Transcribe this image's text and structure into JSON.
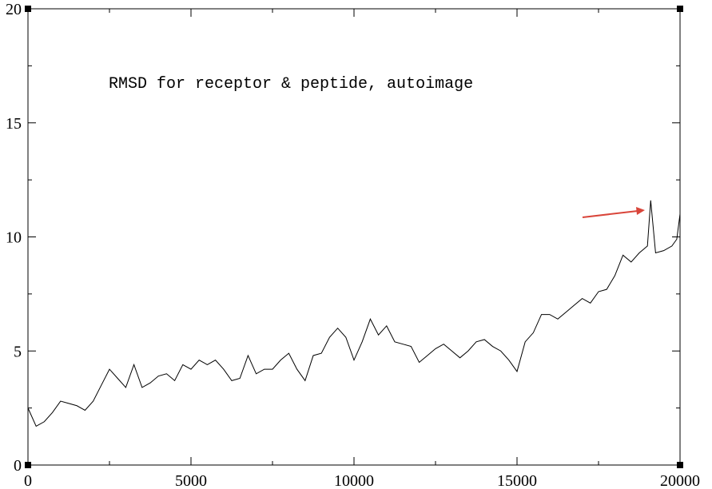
{
  "chart_data": {
    "type": "line",
    "annotation": "RMSD for receptor & peptide, autoimage",
    "x": [
      0,
      250,
      500,
      750,
      1000,
      1250,
      1500,
      1750,
      2000,
      2250,
      2500,
      2750,
      3000,
      3250,
      3500,
      3750,
      4000,
      4250,
      4500,
      4750,
      5000,
      5250,
      5500,
      5750,
      6000,
      6250,
      6500,
      6750,
      7000,
      7250,
      7500,
      7750,
      8000,
      8250,
      8500,
      8750,
      9000,
      9250,
      9500,
      9750,
      10000,
      10250,
      10500,
      10750,
      11000,
      11250,
      11500,
      11750,
      12000,
      12250,
      12500,
      12750,
      13000,
      13250,
      13500,
      13750,
      14000,
      14250,
      14500,
      14750,
      15000,
      15250,
      15500,
      15750,
      16000,
      16250,
      16500,
      16750,
      17000,
      17250,
      17500,
      17750,
      18000,
      18250,
      18500,
      18750,
      19000,
      19100,
      19250,
      19500,
      19750,
      19900,
      20000
    ],
    "series": [
      {
        "color": "#000000",
        "values": [
          2.5,
          1.7,
          1.9,
          2.3,
          2.8,
          2.7,
          2.6,
          2.4,
          2.8,
          3.5,
          4.2,
          3.8,
          3.4,
          4.4,
          3.4,
          3.6,
          3.9,
          4.0,
          3.7,
          4.4,
          4.2,
          4.6,
          4.4,
          4.6,
          4.2,
          3.7,
          3.8,
          4.8,
          4.0,
          4.2,
          4.2,
          4.6,
          4.9,
          4.2,
          3.7,
          4.8,
          4.9,
          5.6,
          6.0,
          5.6,
          4.6,
          5.4,
          6.4,
          5.7,
          6.1,
          5.4,
          5.3,
          5.2,
          4.5,
          4.8,
          5.1,
          5.3,
          5.0,
          4.7,
          5.0,
          5.4,
          5.5,
          5.2,
          5.0,
          4.6,
          4.1,
          5.4,
          5.8,
          6.6,
          6.6,
          6.4,
          6.7,
          7.0,
          7.3,
          7.1,
          7.6,
          7.7,
          8.3,
          9.2,
          8.9,
          9.3,
          9.6,
          11.6,
          9.3,
          9.4,
          9.6,
          9.9,
          11.0
        ]
      }
    ],
    "xlim": [
      0,
      20000
    ],
    "xticks": [
      0,
      5000,
      10000,
      15000,
      20000
    ],
    "xminorticks": [
      2500,
      7500,
      12500,
      17500
    ],
    "ylim": [
      0,
      20
    ],
    "yticks": [
      0,
      5,
      10,
      15,
      20
    ],
    "yminorticks": [
      2.5,
      7.5,
      12.5,
      17.5
    ]
  }
}
